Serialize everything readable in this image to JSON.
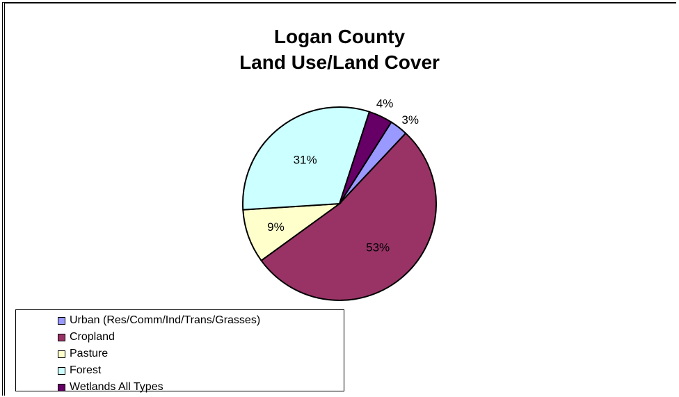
{
  "chart_data": {
    "type": "pie",
    "title": "Logan County",
    "subtitle": "Land Use/Land Cover",
    "categories": [
      "Urban (Res/Comm/Ind/Trans/Grasses)",
      "Cropland",
      "Pasture",
      "Forest",
      "Wetlands  All Types"
    ],
    "values": [
      3,
      53,
      9,
      31,
      4
    ],
    "labels": [
      "3%",
      "53%",
      "9%",
      "31%",
      "4%"
    ],
    "colors": [
      "#9999ff",
      "#993366",
      "#ffffcc",
      "#ccffff",
      "#660066"
    ],
    "legend_position": "bottom-left"
  }
}
